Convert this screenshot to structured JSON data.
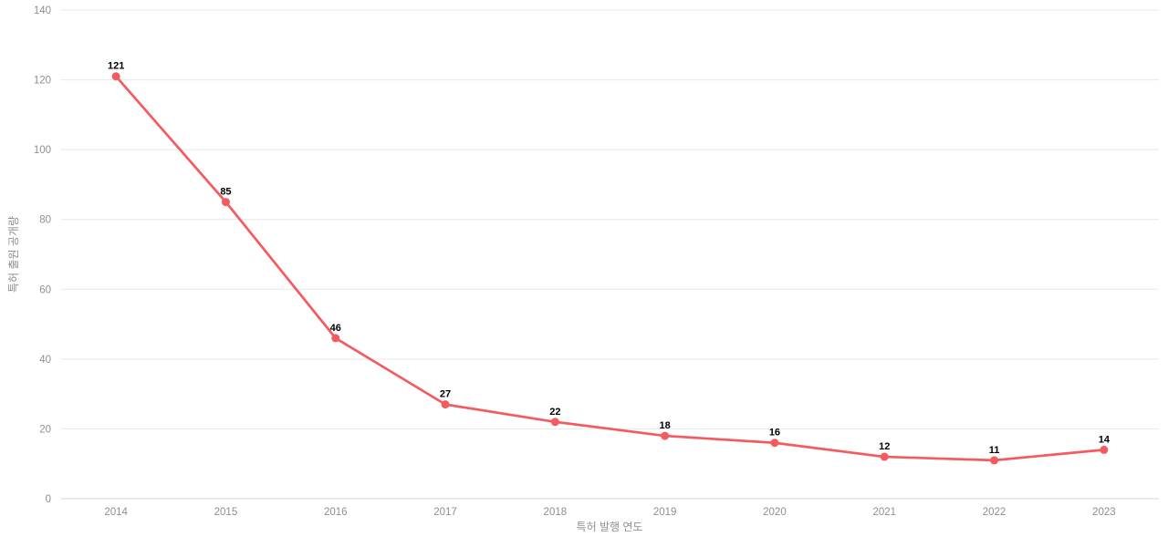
{
  "chart_data": {
    "type": "line",
    "title": "",
    "categories": [
      "2014",
      "2015",
      "2016",
      "2017",
      "2018",
      "2019",
      "2020",
      "2021",
      "2022",
      "2023"
    ],
    "values": [
      121,
      85,
      46,
      27,
      22,
      18,
      16,
      12,
      11,
      14
    ],
    "xlabel": "특허 발행 연도",
    "ylabel": "특허 출원 공개량",
    "ylim": [
      0,
      140
    ],
    "yticks": [
      0,
      20,
      40,
      60,
      80,
      100,
      120,
      140
    ],
    "grid": true,
    "legend_position": "none",
    "data_labels_visible": true,
    "colors": {
      "line": "#f45b60",
      "marker": "#f45b60",
      "grid": "#e8e8e8",
      "axis_line": "#ccd6e3",
      "tick_label": "#8f8f8f",
      "data_label": "#000000",
      "background": "#ffffff"
    }
  }
}
